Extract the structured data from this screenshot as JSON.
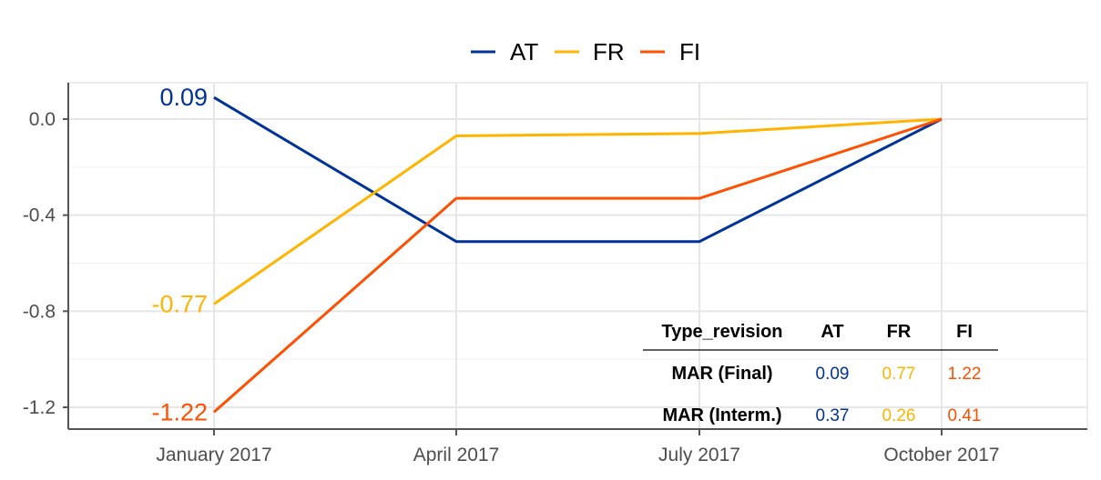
{
  "chart_data": {
    "type": "line",
    "categories": [
      "January 2017",
      "April 2017",
      "July 2017",
      "October 2017"
    ],
    "series": [
      {
        "name": "AT",
        "color": "#003399",
        "values": [
          0.09,
          -0.51,
          -0.51,
          0.0
        ]
      },
      {
        "name": "FR",
        "color": "#FFB400",
        "values": [
          -0.77,
          -0.07,
          -0.06,
          0.0
        ]
      },
      {
        "name": "FI",
        "color": "#FF4F00",
        "values": [
          -1.22,
          -0.33,
          -0.33,
          0.0
        ]
      }
    ],
    "start_labels": [
      "0.09",
      "-0.77",
      "-1.22"
    ],
    "y_ticks": [
      0.0,
      -0.4,
      -0.8,
      -1.2
    ],
    "y_tick_labels": [
      "0.0",
      "-0.4",
      "-0.8",
      "-1.2"
    ],
    "ylim": [
      -1.28,
      0.15
    ],
    "grid": true,
    "legend_position": "top",
    "title": "",
    "xlabel": "",
    "ylabel": "",
    "table": {
      "header": [
        "Type_revision",
        "AT",
        "FR",
        "FI"
      ],
      "rows": [
        {
          "label": "MAR (Final)",
          "values": [
            "0.09",
            "0.77",
            "1.22"
          ]
        },
        {
          "label": "MAR (Interm.)",
          "values": [
            "0.37",
            "0.26",
            "0.41"
          ]
        }
      ]
    }
  }
}
